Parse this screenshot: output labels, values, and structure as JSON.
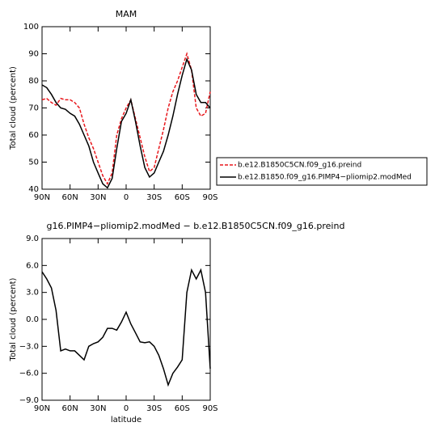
{
  "chart_data": [
    {
      "type": "line",
      "title": "MAM",
      "ylabel": "Total cloud (percent)",
      "legend": "right",
      "x": [
        90,
        85,
        80,
        75,
        70,
        65,
        60,
        55,
        50,
        45,
        40,
        35,
        30,
        25,
        20,
        15,
        10,
        5,
        0,
        -5,
        -10,
        -15,
        -20,
        -25,
        -30,
        -35,
        -40,
        -45,
        -50,
        -55,
        -60,
        -65,
        -70,
        -75,
        -80,
        -85,
        -90
      ],
      "xlim": [
        90,
        -90
      ],
      "xticks": [
        {
          "value": 90,
          "label": "90N"
        },
        {
          "value": 60,
          "label": "60N"
        },
        {
          "value": 30,
          "label": "30N"
        },
        0,
        {
          "value": -30,
          "label": "30S"
        },
        {
          "value": -60,
          "label": "60S"
        },
        {
          "value": -90,
          "label": "90S"
        }
      ],
      "ylim": [
        40,
        100
      ],
      "yticks": [
        40,
        50,
        60,
        70,
        80,
        90,
        100
      ],
      "series": [
        {
          "name": "b.e12.B1850C5CN.f09_g16.preind",
          "color": "#e8161b",
          "dash": true,
          "values": [
            73,
            73.5,
            72,
            71,
            73.5,
            73,
            73,
            72,
            70,
            64,
            59,
            55,
            50,
            45,
            42,
            46,
            60,
            66,
            70,
            73,
            66,
            59,
            52,
            46.5,
            48,
            55,
            62,
            70,
            76,
            80,
            85,
            90,
            84,
            70,
            67,
            68,
            76
          ]
        },
        {
          "name": "b.e12.B1850.f09_g16.PIMP4−pliomip2.modMed",
          "color": "#000000",
          "dash": false,
          "values": [
            78.5,
            77.5,
            75,
            72,
            70,
            69.5,
            68,
            67,
            64,
            60,
            56,
            50,
            46,
            42,
            40.5,
            44,
            55,
            65,
            68,
            73,
            65,
            56,
            48,
            44.5,
            46,
            50,
            54,
            60,
            67,
            75,
            82,
            88,
            84,
            75,
            72,
            72,
            70
          ]
        }
      ]
    },
    {
      "type": "line",
      "title": "g16.PIMP4−pliomip2.modMed − b.e12.B1850C5CN.f09_g16.preind",
      "ylabel": "Total cloud (percent)",
      "xlabel": "latitude",
      "x": [
        90,
        85,
        80,
        75,
        70,
        65,
        60,
        55,
        50,
        45,
        40,
        35,
        30,
        25,
        20,
        15,
        10,
        5,
        0,
        -5,
        -10,
        -15,
        -20,
        -25,
        -30,
        -35,
        -40,
        -45,
        -50,
        -55,
        -60,
        -65,
        -70,
        -75,
        -80,
        -85,
        -90
      ],
      "xlim": [
        90,
        -90
      ],
      "xticks": [
        {
          "value": 90,
          "label": "90N"
        },
        {
          "value": 60,
          "label": "60N"
        },
        {
          "value": 30,
          "label": "30N"
        },
        0,
        {
          "value": -30,
          "label": "30S"
        },
        {
          "value": -60,
          "label": "60S"
        },
        {
          "value": -90,
          "label": "90S"
        }
      ],
      "ylim": [
        -9,
        9
      ],
      "yticks": [
        {
          "value": -9,
          "label": "−9.0"
        },
        {
          "value": -6,
          "label": "−6.0"
        },
        {
          "value": -3,
          "label": "−3.0"
        },
        {
          "value": 0,
          "label": "0.0"
        },
        {
          "value": 3,
          "label": "3.0"
        },
        {
          "value": 6,
          "label": "6.0"
        },
        {
          "value": 9,
          "label": "9.0"
        }
      ],
      "series": [
        {
          "color": "#000000",
          "dash": false,
          "values": [
            5.3,
            4.5,
            3.5,
            1,
            -3.5,
            -3.3,
            -3.5,
            -3.5,
            -4,
            -4.5,
            -3,
            -2.7,
            -2.5,
            -2,
            -1,
            -1,
            -1.2,
            -0.3,
            0.8,
            -0.5,
            -1.5,
            -2.5,
            -2.6,
            -2.5,
            -3,
            -4,
            -5.5,
            -7.3,
            -6,
            -5.3,
            -4.5,
            3,
            5.5,
            4.5,
            5.5,
            3,
            -5.5
          ]
        }
      ]
    }
  ]
}
